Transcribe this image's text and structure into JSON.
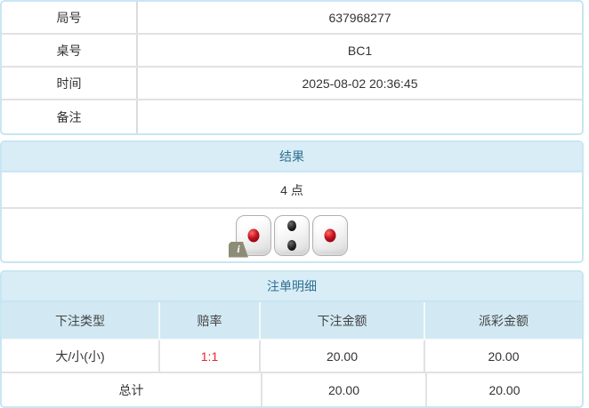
{
  "info_table": {
    "rows": [
      {
        "label": "局号",
        "value": "637968277"
      },
      {
        "label": "桌号",
        "value": "BC1"
      },
      {
        "label": "时间",
        "value": "2025-08-02 20:36:45"
      },
      {
        "label": "备注",
        "value": ""
      }
    ]
  },
  "result_panel": {
    "header": "结果",
    "points": "4 点",
    "dice": [
      {
        "value": 1,
        "color": "red"
      },
      {
        "value": 2,
        "color": "black"
      },
      {
        "value": 1,
        "color": "red"
      }
    ],
    "info_badge": "i"
  },
  "bet_panel": {
    "header": "注单明细",
    "columns": [
      "下注类型",
      "赔率",
      "下注金额",
      "派彩金额"
    ],
    "rows": [
      {
        "type": "大/小(小)",
        "odds": "1:1",
        "bet_amount": "20.00",
        "payout_amount": "20.00"
      }
    ],
    "total": {
      "label": "总计",
      "bet_amount": "20.00",
      "payout_amount": "20.00"
    }
  },
  "colors": {
    "panel_border": "#c8e6f2",
    "header_bg": "#d9edf7",
    "header_text": "#31708f",
    "column_header_bg": "#d2e9f4",
    "odds_red": "#e8262d",
    "body_text": "#333333"
  }
}
